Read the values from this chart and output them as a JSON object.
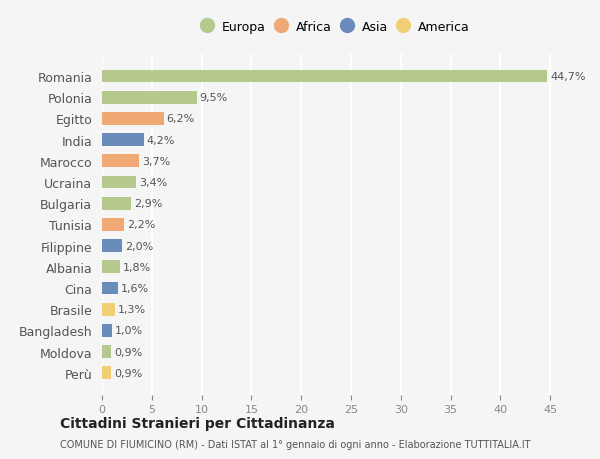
{
  "countries": [
    "Romania",
    "Polonia",
    "Egitto",
    "India",
    "Marocco",
    "Ucraina",
    "Bulgaria",
    "Tunisia",
    "Filippine",
    "Albania",
    "Cina",
    "Brasile",
    "Bangladesh",
    "Moldova",
    "Perù"
  ],
  "values": [
    44.7,
    9.5,
    6.2,
    4.2,
    3.7,
    3.4,
    2.9,
    2.2,
    2.0,
    1.8,
    1.6,
    1.3,
    1.0,
    0.9,
    0.9
  ],
  "labels": [
    "44,7%",
    "9,5%",
    "6,2%",
    "4,2%",
    "3,7%",
    "3,4%",
    "2,9%",
    "2,2%",
    "2,0%",
    "1,8%",
    "1,6%",
    "1,3%",
    "1,0%",
    "0,9%",
    "0,9%"
  ],
  "continents": [
    "Europa",
    "Europa",
    "Africa",
    "Asia",
    "Africa",
    "Europa",
    "Europa",
    "Africa",
    "Asia",
    "Europa",
    "Asia",
    "America",
    "Asia",
    "Europa",
    "America"
  ],
  "colors": {
    "Europa": "#b5c98e",
    "Africa": "#f0a875",
    "Asia": "#6b8cba",
    "America": "#f0cf75"
  },
  "legend_order": [
    "Europa",
    "Africa",
    "Asia",
    "America"
  ],
  "bg_color": "#f5f5f5",
  "grid_color": "#ffffff",
  "title1": "Cittadini Stranieri per Cittadinanza",
  "title2": "COMUNE DI FIUMICINO (RM) - Dati ISTAT al 1° gennaio di ogni anno - Elaborazione TUTTITALIA.IT",
  "xlim": [
    0,
    47
  ],
  "xticks": [
    0,
    5,
    10,
    15,
    20,
    25,
    30,
    35,
    40,
    45
  ]
}
